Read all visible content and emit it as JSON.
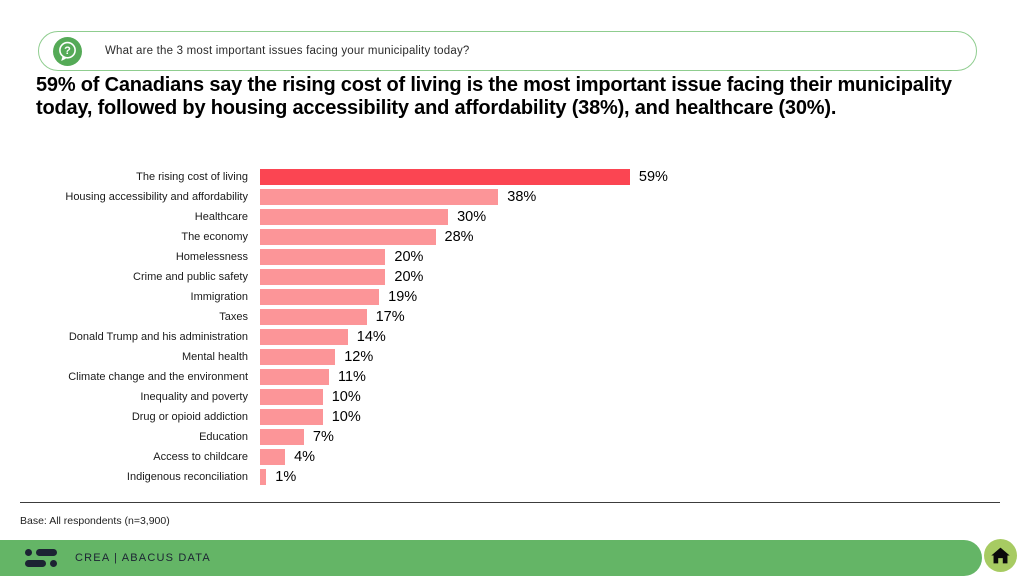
{
  "question_bar": {
    "icon": "question-bubble-icon",
    "text": "What are the 3 most important issues facing your municipality today?"
  },
  "headline": {
    "text": "59% of Canadians say the rising cost of living is the most important issue facing their municipality today, followed by housing accessibility and affordability (38%), and healthcare (30%)."
  },
  "chart_data": {
    "type": "bar",
    "orientation": "horizontal",
    "title": "",
    "xlabel": "",
    "ylabel": "",
    "xlim": [
      0,
      62
    ],
    "grid": false,
    "legend": false,
    "categories": [
      "The rising cost of living",
      "Housing accessibility and affordability",
      "Healthcare",
      "The economy",
      "Homelessness",
      "Crime and public safety",
      "Immigration",
      "Taxes",
      "Donald Trump and his administration",
      "Mental health",
      "Climate change and the environment",
      "Inequality and poverty",
      "Drug or opioid addiction",
      "Education",
      "Access to childcare",
      "Indigenous reconciliation"
    ],
    "values": [
      59,
      38,
      30,
      28,
      20,
      20,
      19,
      17,
      14,
      12,
      11,
      10,
      10,
      7,
      4,
      1
    ],
    "value_labels": [
      "59%",
      "38%",
      "30%",
      "28%",
      "20%",
      "20%",
      "19%",
      "17%",
      "14%",
      "12%",
      "11%",
      "10%",
      "10%",
      "7%",
      "4%",
      "1%"
    ],
    "highlight_index": 0,
    "highlight_color": "#FB4552",
    "bar_color": "#FC9598"
  },
  "footer": {
    "base_note": "Base: All respondents (n=3,900)",
    "bar_color": "#64B566",
    "brand": "CREA  |  ABACUS DATA",
    "home_icon": "home-icon",
    "logo": "crea-abacus-logo"
  }
}
